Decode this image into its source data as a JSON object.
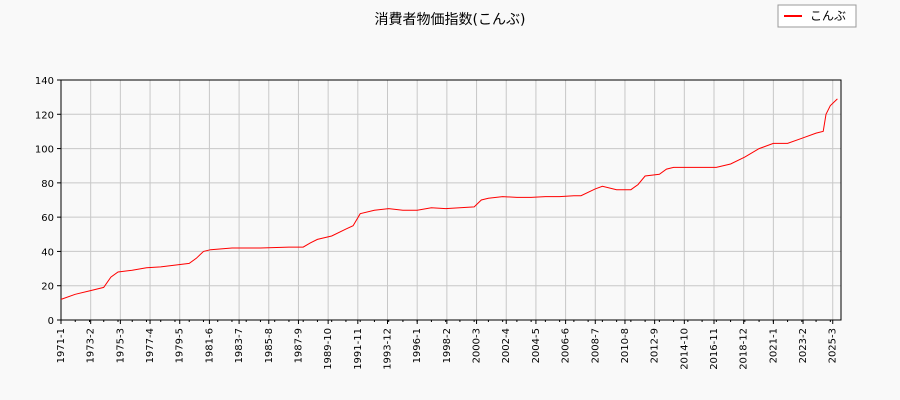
{
  "chart_data": {
    "type": "line",
    "title": "消費者物価指数(こんぶ)",
    "xlabel": "",
    "ylabel": "",
    "ylim": [
      0,
      140
    ],
    "yticks": [
      0,
      20,
      40,
      60,
      80,
      100,
      120,
      140
    ],
    "x_tick_labels": [
      "1971-1",
      "1973-2",
      "1975-3",
      "1977-4",
      "1979-5",
      "1981-6",
      "1983-7",
      "1985-8",
      "1987-9",
      "1989-10",
      "1991-11",
      "1993-12",
      "1996-1",
      "1998-2",
      "2000-3",
      "2002-4",
      "2004-5",
      "2006-6",
      "2008-7",
      "2010-8",
      "2012-9",
      "2014-10",
      "2016-11",
      "2018-12",
      "2021-1",
      "2023-2",
      "2025-3"
    ],
    "grid": true,
    "legend_position": "top-right",
    "colors": {
      "line": "#ff0000",
      "grid": "#c8c8c8",
      "background": "#f9f9f9"
    },
    "series": [
      {
        "name": "こんぶ",
        "x": [
          1971.0,
          1972.0,
          1973.0,
          1974.0,
          1974.5,
          1975.0,
          1976.0,
          1977.0,
          1978.0,
          1979.0,
          1980.0,
          1980.5,
          1981.0,
          1981.5,
          1983.0,
          1984.0,
          1985.0,
          1987.0,
          1988.0,
          1988.5,
          1989.0,
          1990.0,
          1991.0,
          1991.5,
          1992.0,
          1993.0,
          1994.0,
          1995.0,
          1996.0,
          1997.0,
          1998.0,
          1999.0,
          2000.0,
          2000.5,
          2001.0,
          2002.0,
          2003.0,
          2004.0,
          2005.0,
          2006.0,
          2007.0,
          2007.5,
          2008.5,
          2009.0,
          2010.0,
          2011.0,
          2011.5,
          2012.0,
          2013.0,
          2013.5,
          2014.0,
          2015.0,
          2016.0,
          2017.0,
          2018.0,
          2019.0,
          2020.0,
          2021.0,
          2022.0,
          2023.0,
          2024.0,
          2024.5,
          2024.7,
          2025.0,
          2025.5
        ],
        "values": [
          12,
          15,
          17,
          19,
          25,
          28,
          29,
          30.5,
          31,
          32,
          33,
          36,
          40,
          41,
          42,
          42,
          42,
          42.5,
          42.5,
          45,
          47,
          49,
          53,
          55,
          62,
          64,
          65,
          64,
          64,
          65.5,
          65,
          65.5,
          66,
          70,
          71,
          72,
          71.5,
          71.5,
          72,
          72,
          72.5,
          72.5,
          76.5,
          78,
          76,
          76,
          79,
          84,
          85,
          88,
          89,
          89,
          89,
          89,
          91,
          95,
          100,
          103,
          103,
          106,
          109,
          110,
          120,
          125,
          129
        ]
      }
    ]
  }
}
